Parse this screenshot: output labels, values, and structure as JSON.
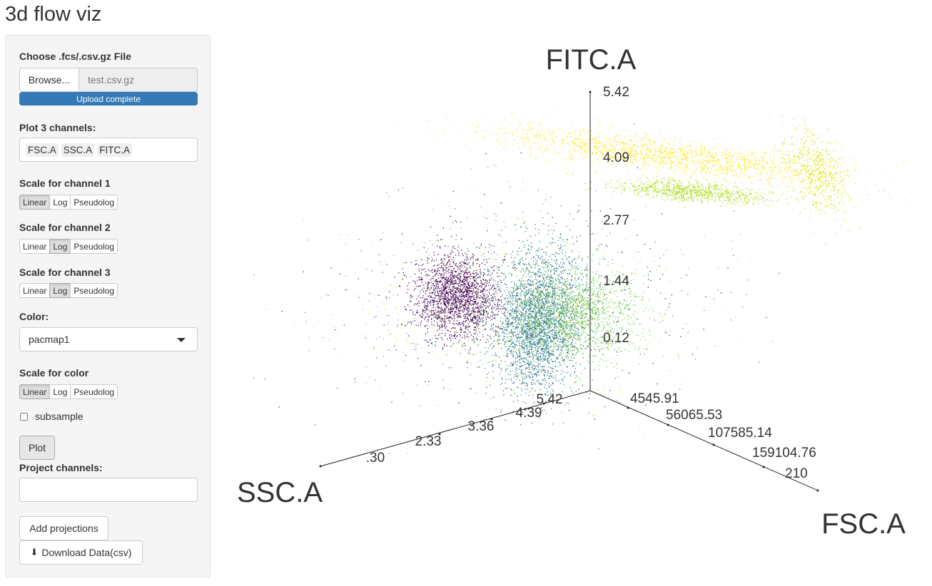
{
  "app": {
    "title": "3d flow viz"
  },
  "sidebar": {
    "file": {
      "label": "Choose .fcs/.csv.gz File",
      "browse_label": "Browse...",
      "filename": "test.csv.gz",
      "progress_text": "Upload complete",
      "progress": 1.0
    },
    "channels": {
      "label": "Plot 3 channels:",
      "selected": [
        "FSC.A",
        "SSC.A",
        "FITC.A"
      ]
    },
    "scales": [
      {
        "label": "Scale for channel 1",
        "options": [
          "Linear",
          "Log",
          "Pseudolog"
        ],
        "selected": "Linear"
      },
      {
        "label": "Scale for channel 2",
        "options": [
          "Linear",
          "Log",
          "Pseudolog"
        ],
        "selected": "Log"
      },
      {
        "label": "Scale for channel 3",
        "options": [
          "Linear",
          "Log",
          "Pseudolog"
        ],
        "selected": "Log"
      }
    ],
    "color": {
      "label": "Color:",
      "value": "pacmap1"
    },
    "color_scale": {
      "label": "Scale for color",
      "options": [
        "Linear",
        "Log",
        "Pseudolog"
      ],
      "selected": "Linear"
    },
    "subsample": {
      "label": "subsample",
      "checked": false
    },
    "plot_button": "Plot",
    "project": {
      "label": "Project channels:",
      "value": ""
    },
    "add_projections_button": "Add projections",
    "download_button": "Download Data(csv)"
  },
  "chart_data": {
    "type": "scatter",
    "projection": "3d",
    "colormap": "viridis",
    "axes": {
      "x": {
        "label": "FSC.A",
        "ticks": [
          "4545.91",
          "56065.53",
          "107585.14",
          "159104.76",
          "210"
        ]
      },
      "y": {
        "label": "SSC.A",
        "ticks": [
          "5.42",
          "4.39",
          "3.36",
          "2.33",
          ".30"
        ]
      },
      "z": {
        "label": "FITC.A",
        "ticks": [
          "0.12",
          "1.44",
          "2.77",
          "4.09",
          "5.42"
        ]
      }
    },
    "grid": false,
    "legend": "none",
    "clusters": [
      {
        "name": "",
        "color": "#440154",
        "points": 1800
      },
      {
        "name": "",
        "color": "#2a788e",
        "points": 2600
      },
      {
        "name": "",
        "color": "#7ad151",
        "points": 1400
      },
      {
        "name": "",
        "color": "#fde725",
        "points": 1600
      },
      {
        "name": "",
        "color": "#b5de2b",
        "points": 900
      },
      {
        "name": "",
        "color": "#dce319",
        "points": 600
      }
    ]
  }
}
